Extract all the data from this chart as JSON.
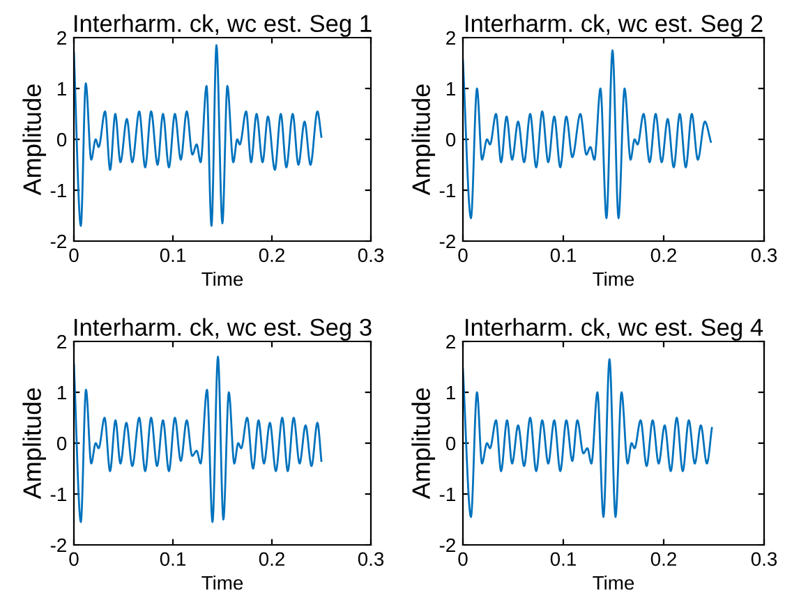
{
  "chart_data": [
    {
      "type": "line",
      "title": "Interharm. ck, wc est. Seg 1",
      "xlabel": "Time",
      "ylabel": "Amplitude",
      "xlim": [
        0,
        0.3
      ],
      "ylim": [
        -2,
        2
      ],
      "xticks": [
        0,
        0.1,
        0.2,
        0.3
      ],
      "yticks": [
        -2,
        -1,
        0,
        1,
        2
      ],
      "grid": false,
      "legend": false,
      "series": [
        {
          "color": "#0072bd",
          "x": [
            0,
            0.007,
            0.012,
            0.0175,
            0.022,
            0.025,
            0.0315,
            0.0366,
            0.0418,
            0.047,
            0.0535,
            0.059,
            0.066,
            0.072,
            0.078,
            0.0845,
            0.09,
            0.096,
            0.102,
            0.108,
            0.114,
            0.1197,
            0.124,
            0.128,
            0.134,
            0.139,
            0.144,
            0.15,
            0.155,
            0.161,
            0.165,
            0.1676,
            0.174,
            0.179,
            0.1845,
            0.1906,
            0.196,
            0.203,
            0.209,
            0.2146,
            0.221,
            0.2268,
            0.233,
            0.239,
            0.246,
            0.25
          ],
          "values": [
            1.7,
            -1.7,
            1.1,
            -0.4,
            0.0,
            -0.15,
            0.55,
            -0.6,
            0.5,
            -0.45,
            0.4,
            -0.45,
            0.55,
            -0.55,
            0.55,
            -0.5,
            0.5,
            -0.55,
            0.5,
            -0.4,
            0.55,
            -0.3,
            -0.1,
            -0.45,
            1.05,
            -1.7,
            1.85,
            -1.65,
            1.05,
            -0.45,
            0.0,
            -0.1,
            0.55,
            -0.45,
            0.5,
            -0.45,
            0.45,
            -0.6,
            0.5,
            -0.55,
            0.5,
            -0.5,
            0.35,
            -0.5,
            0.55,
            0.05
          ]
        }
      ]
    },
    {
      "type": "line",
      "title": "Interharm. ck, wc est. Seg 2",
      "xlabel": "Time",
      "ylabel": "Amplitude",
      "xlim": [
        0,
        0.3
      ],
      "ylim": [
        -2,
        2
      ],
      "xticks": [
        0,
        0.1,
        0.2,
        0.3
      ],
      "yticks": [
        -2,
        -1,
        0,
        1,
        2
      ],
      "grid": false,
      "legend": false,
      "series": [
        {
          "color": "#0072bd",
          "x": [
            0,
            0.008,
            0.014,
            0.019,
            0.024,
            0.027,
            0.033,
            0.038,
            0.0435,
            0.049,
            0.055,
            0.061,
            0.067,
            0.073,
            0.079,
            0.085,
            0.091,
            0.097,
            0.103,
            0.109,
            0.117,
            0.123,
            0.127,
            0.131,
            0.137,
            0.143,
            0.149,
            0.155,
            0.161,
            0.167,
            0.171,
            0.174,
            0.18,
            0.186,
            0.192,
            0.198,
            0.204,
            0.21,
            0.216,
            0.222,
            0.228,
            0.234,
            0.241,
            0.247
          ],
          "values": [
            1.55,
            -1.55,
            1.0,
            -0.4,
            0.0,
            -0.1,
            0.5,
            -0.45,
            0.45,
            -0.4,
            0.35,
            -0.45,
            0.5,
            -0.55,
            0.55,
            -0.45,
            0.45,
            -0.55,
            0.45,
            -0.35,
            0.5,
            -0.3,
            -0.15,
            -0.4,
            1.0,
            -1.55,
            1.75,
            -1.55,
            1.0,
            -0.4,
            0.0,
            -0.1,
            0.5,
            -0.45,
            0.5,
            -0.45,
            0.4,
            -0.55,
            0.5,
            -0.55,
            0.5,
            -0.4,
            0.35,
            -0.05
          ]
        }
      ]
    },
    {
      "type": "line",
      "title": "Interharm. ck, wc est. Seg 3",
      "xlabel": "Time",
      "ylabel": "Amplitude",
      "xlim": [
        0,
        0.3
      ],
      "ylim": [
        -2,
        2
      ],
      "xticks": [
        0,
        0.1,
        0.2,
        0.3
      ],
      "yticks": [
        -2,
        -1,
        0,
        1,
        2
      ],
      "grid": false,
      "legend": false,
      "series": [
        {
          "color": "#0072bd",
          "x": [
            0,
            0.007,
            0.0122,
            0.0175,
            0.022,
            0.025,
            0.031,
            0.0365,
            0.042,
            0.047,
            0.053,
            0.059,
            0.066,
            0.072,
            0.078,
            0.084,
            0.09,
            0.096,
            0.102,
            0.108,
            0.114,
            0.1195,
            0.124,
            0.128,
            0.1345,
            0.14,
            0.1455,
            0.151,
            0.1565,
            0.162,
            0.166,
            0.169,
            0.175,
            0.181,
            0.1865,
            0.192,
            0.198,
            0.204,
            0.2105,
            0.216,
            0.222,
            0.228,
            0.234,
            0.24,
            0.246,
            0.25
          ],
          "values": [
            1.55,
            -1.55,
            1.05,
            -0.4,
            0.0,
            -0.1,
            0.5,
            -0.55,
            0.45,
            -0.4,
            0.4,
            -0.45,
            0.5,
            -0.55,
            0.5,
            -0.45,
            0.45,
            -0.55,
            0.5,
            -0.35,
            0.45,
            -0.25,
            -0.15,
            -0.4,
            1.05,
            -1.55,
            1.7,
            -1.5,
            1.0,
            -0.4,
            0.0,
            -0.1,
            0.5,
            -0.5,
            0.45,
            -0.4,
            0.4,
            -0.55,
            0.5,
            -0.55,
            0.5,
            -0.4,
            0.35,
            -0.45,
            0.4,
            -0.35
          ]
        }
      ]
    },
    {
      "type": "line",
      "title": "Interharm. ck, wc est. Seg 4",
      "xlabel": "Time",
      "ylabel": "Amplitude",
      "xlim": [
        0,
        0.3
      ],
      "ylim": [
        -2,
        2
      ],
      "xticks": [
        0,
        0.1,
        0.2,
        0.3
      ],
      "yticks": [
        -2,
        -1,
        0,
        1,
        2
      ],
      "grid": false,
      "legend": false,
      "series": [
        {
          "color": "#0072bd",
          "x": [
            0,
            0.008,
            0.014,
            0.019,
            0.024,
            0.027,
            0.033,
            0.038,
            0.044,
            0.049,
            0.055,
            0.061,
            0.067,
            0.073,
            0.079,
            0.085,
            0.091,
            0.097,
            0.103,
            0.109,
            0.114,
            0.12,
            0.124,
            0.128,
            0.134,
            0.14,
            0.146,
            0.152,
            0.158,
            0.164,
            0.168,
            0.171,
            0.177,
            0.183,
            0.189,
            0.195,
            0.201,
            0.207,
            0.213,
            0.219,
            0.225,
            0.231,
            0.237,
            0.243,
            0.248
          ],
          "values": [
            1.45,
            -1.45,
            1.0,
            -0.4,
            0.0,
            -0.1,
            0.45,
            -0.55,
            0.45,
            -0.4,
            0.35,
            -0.45,
            0.5,
            -0.55,
            0.45,
            -0.4,
            0.45,
            -0.55,
            0.45,
            -0.35,
            0.45,
            -0.2,
            -0.1,
            -0.4,
            1.0,
            -1.45,
            1.65,
            -1.45,
            1.0,
            -0.4,
            0.0,
            -0.1,
            0.45,
            -0.45,
            0.45,
            -0.4,
            0.35,
            -0.55,
            0.5,
            -0.55,
            0.45,
            -0.4,
            0.35,
            -0.4,
            0.3
          ]
        }
      ]
    }
  ]
}
